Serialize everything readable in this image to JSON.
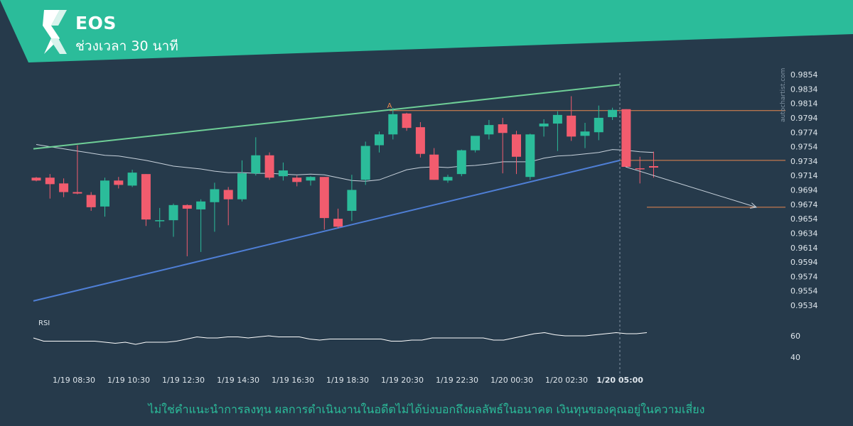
{
  "header": {
    "symbol": "EOS",
    "timeframe": "ช่วงเวลา 30 นาที"
  },
  "watermark": "autochartist.com",
  "disclaimer": "ไม่ใช่คำแนะนำการลงทุน ผลการดำเนินงานในอดีตไม่ได้บ่งบอกถึงผลลัพธ์ในอนาคต เงินทุนของคุณอยู่ในความเสี่ยง",
  "colors": {
    "background": "#263a4b",
    "header": "#2bbc9a",
    "bullish": "#2bbc9a",
    "bearish": "#f25c6e",
    "upper_trendline": "#6fcf97",
    "lower_trendline": "#4f7fd6",
    "moving_average": "#c8d2dc",
    "level_line": "#e9874f",
    "forecast_arrow": "#c8d2dc",
    "rsi_line": "#ffffff"
  },
  "chart_data": {
    "type": "candlestick",
    "price_axis": {
      "ticks": [
        0.9854,
        0.9834,
        0.9814,
        0.9794,
        0.9774,
        0.9754,
        0.9734,
        0.9714,
        0.9694,
        0.9674,
        0.9654,
        0.9634,
        0.9614,
        0.9594,
        0.9574,
        0.9554,
        0.9534
      ],
      "range": [
        0.9524,
        0.9864
      ]
    },
    "time_axis": {
      "labels": [
        "1/19 08:30",
        "1/19 10:30",
        "1/19 12:30",
        "1/19 14:30",
        "1/19 16:30",
        "1/19 18:30",
        "1/19 20:30",
        "1/19 22:30",
        "1/20 00:30",
        "1/20 02:30",
        "1/20 05:00"
      ],
      "highlight_label": "1/20 05:00"
    },
    "candles": [
      {
        "o": 0.9711,
        "h": 0.9712,
        "l": 0.9706,
        "c": 0.9707
      },
      {
        "o": 0.9711,
        "h": 0.9716,
        "l": 0.9682,
        "c": 0.9702
      },
      {
        "o": 0.9703,
        "h": 0.971,
        "l": 0.9684,
        "c": 0.9691
      },
      {
        "o": 0.9691,
        "h": 0.9756,
        "l": 0.9688,
        "c": 0.9689
      },
      {
        "o": 0.9687,
        "h": 0.9691,
        "l": 0.9665,
        "c": 0.967
      },
      {
        "o": 0.9671,
        "h": 0.9711,
        "l": 0.9657,
        "c": 0.9707
      },
      {
        "o": 0.9707,
        "h": 0.9712,
        "l": 0.9696,
        "c": 0.9701
      },
      {
        "o": 0.97,
        "h": 0.9722,
        "l": 0.9698,
        "c": 0.9718
      },
      {
        "o": 0.9716,
        "h": 0.9716,
        "l": 0.9644,
        "c": 0.9653
      },
      {
        "o": 0.9652,
        "h": 0.9669,
        "l": 0.9642,
        "c": 0.9652
      },
      {
        "o": 0.9652,
        "h": 0.9675,
        "l": 0.9629,
        "c": 0.9673
      },
      {
        "o": 0.9673,
        "h": 0.9674,
        "l": 0.9602,
        "c": 0.9668
      },
      {
        "o": 0.9667,
        "h": 0.9681,
        "l": 0.9608,
        "c": 0.9678
      },
      {
        "o": 0.9677,
        "h": 0.9704,
        "l": 0.9636,
        "c": 0.9695
      },
      {
        "o": 0.9694,
        "h": 0.9698,
        "l": 0.9645,
        "c": 0.9681
      },
      {
        "o": 0.9681,
        "h": 0.9735,
        "l": 0.9678,
        "c": 0.9717
      },
      {
        "o": 0.9717,
        "h": 0.9767,
        "l": 0.9714,
        "c": 0.9742
      },
      {
        "o": 0.9742,
        "h": 0.9746,
        "l": 0.9708,
        "c": 0.9711
      },
      {
        "o": 0.9713,
        "h": 0.9732,
        "l": 0.9707,
        "c": 0.9721
      },
      {
        "o": 0.9711,
        "h": 0.9714,
        "l": 0.9699,
        "c": 0.9705
      },
      {
        "o": 0.9707,
        "h": 0.9713,
        "l": 0.97,
        "c": 0.9712
      },
      {
        "o": 0.9712,
        "h": 0.9712,
        "l": 0.9639,
        "c": 0.9655
      },
      {
        "o": 0.9654,
        "h": 0.9668,
        "l": 0.9641,
        "c": 0.9643
      },
      {
        "o": 0.9665,
        "h": 0.9715,
        "l": 0.9651,
        "c": 0.9694
      },
      {
        "o": 0.9708,
        "h": 0.9761,
        "l": 0.9701,
        "c": 0.9755
      },
      {
        "o": 0.9756,
        "h": 0.9775,
        "l": 0.9746,
        "c": 0.9771
      },
      {
        "o": 0.9771,
        "h": 0.9808,
        "l": 0.9764,
        "c": 0.9799
      },
      {
        "o": 0.98,
        "h": 0.9801,
        "l": 0.9776,
        "c": 0.978
      },
      {
        "o": 0.9781,
        "h": 0.9788,
        "l": 0.9739,
        "c": 0.9744
      },
      {
        "o": 0.9743,
        "h": 0.9752,
        "l": 0.9708,
        "c": 0.9708
      },
      {
        "o": 0.9707,
        "h": 0.9715,
        "l": 0.9704,
        "c": 0.9712
      },
      {
        "o": 0.9716,
        "h": 0.975,
        "l": 0.9713,
        "c": 0.9749
      },
      {
        "o": 0.9749,
        "h": 0.9768,
        "l": 0.9746,
        "c": 0.9769
      },
      {
        "o": 0.9771,
        "h": 0.9791,
        "l": 0.9764,
        "c": 0.9784
      },
      {
        "o": 0.9785,
        "h": 0.9794,
        "l": 0.9717,
        "c": 0.9773
      },
      {
        "o": 0.9771,
        "h": 0.9776,
        "l": 0.9716,
        "c": 0.974
      },
      {
        "o": 0.9712,
        "h": 0.9772,
        "l": 0.9708,
        "c": 0.9771
      },
      {
        "o": 0.9782,
        "h": 0.9792,
        "l": 0.9768,
        "c": 0.9786
      },
      {
        "o": 0.9786,
        "h": 0.9803,
        "l": 0.9748,
        "c": 0.9798
      },
      {
        "o": 0.9797,
        "h": 0.9824,
        "l": 0.9762,
        "c": 0.9768
      },
      {
        "o": 0.9769,
        "h": 0.9787,
        "l": 0.9752,
        "c": 0.9775
      },
      {
        "o": 0.9774,
        "h": 0.9811,
        "l": 0.9763,
        "c": 0.9794
      },
      {
        "o": 0.9795,
        "h": 0.9808,
        "l": 0.9791,
        "c": 0.9805
      },
      {
        "o": 0.9806,
        "h": 0.9806,
        "l": 0.9726,
        "c": 0.9726
      },
      {
        "o": 0.9724,
        "h": 0.974,
        "l": 0.9703,
        "c": 0.9723
      },
      {
        "o": 0.9727,
        "h": 0.9747,
        "l": 0.9711,
        "c": 0.9725
      }
    ],
    "moving_average": [
      0.9757,
      0.9754,
      0.9751,
      0.9748,
      0.9745,
      0.9742,
      0.9741,
      0.9738,
      0.9735,
      0.9731,
      0.9727,
      0.9725,
      0.9723,
      0.972,
      0.9718,
      0.9718,
      0.9717,
      0.9717,
      0.9716,
      0.9715,
      0.9716,
      0.9715,
      0.9711,
      0.9707,
      0.9706,
      0.9708,
      0.9715,
      0.9722,
      0.9725,
      0.9726,
      0.9725,
      0.9727,
      0.9728,
      0.973,
      0.9733,
      0.9733,
      0.9733,
      0.9738,
      0.9741,
      0.9742,
      0.9744,
      0.9746,
      0.975,
      0.9749,
      0.9747,
      0.9746
    ],
    "upper_trendline": {
      "from": 0.9751,
      "to": 0.984
    },
    "lower_trendline": {
      "from": 0.954,
      "to": 0.9735
    },
    "pattern_point_label": "A",
    "resistance_level": 0.9804,
    "breakout_level": 0.9735,
    "target_level": 0.967,
    "forecast": {
      "from": 0.9726,
      "to": 0.967
    },
    "rsi": {
      "label": "RSI",
      "ticks": [
        60,
        40
      ],
      "range": [
        30,
        80
      ],
      "values": [
        58,
        55,
        55,
        55,
        55,
        55,
        55,
        54,
        53,
        54,
        52,
        54,
        54,
        54,
        55,
        57,
        59,
        58,
        58,
        59,
        59,
        58,
        59,
        60,
        59,
        59,
        59,
        57,
        56,
        57,
        57,
        57,
        57,
        57,
        57,
        55,
        55,
        56,
        56,
        58,
        58,
        58,
        58,
        58,
        58,
        56,
        56,
        58,
        60,
        62,
        63,
        61,
        60,
        60,
        60,
        61,
        62,
        63,
        62,
        62,
        63
      ]
    }
  }
}
